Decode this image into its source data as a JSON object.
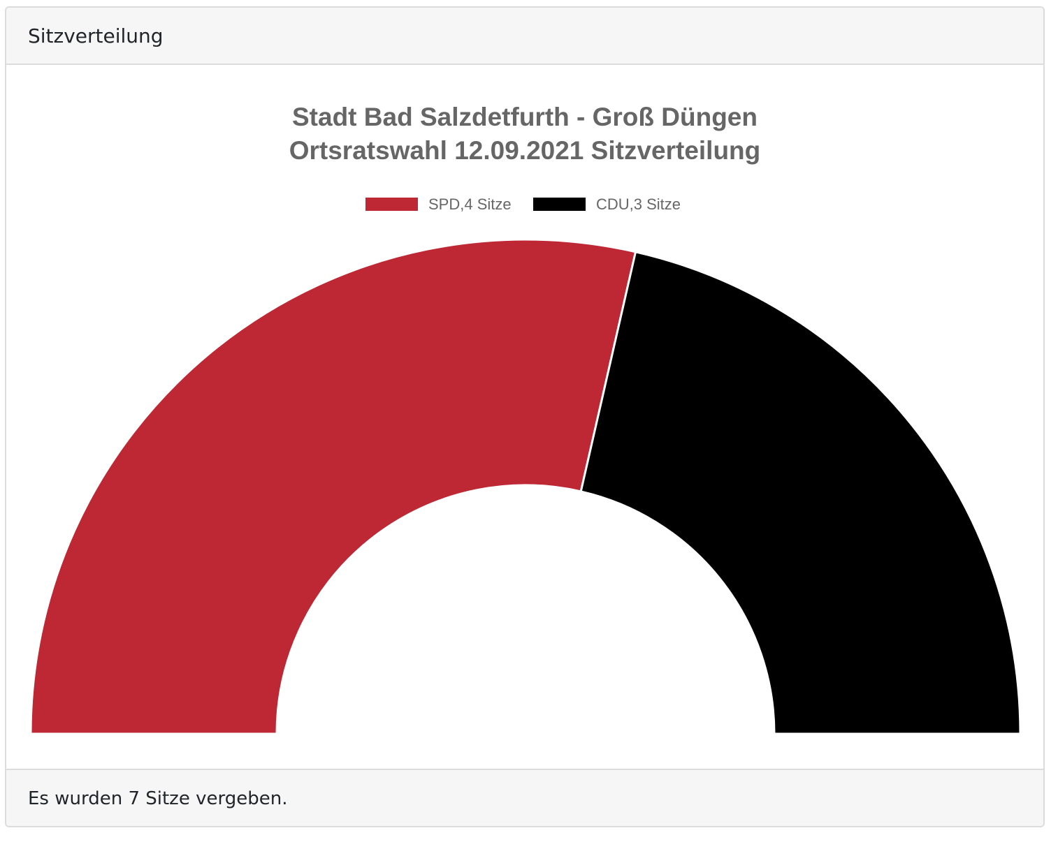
{
  "card": {
    "header_title": "Sitzverteilung",
    "footer_text": "Es wurden 7 Sitze vergeben."
  },
  "chart_data": {
    "type": "pie",
    "variant": "half-doughnut",
    "title_lines": [
      "Stadt Bad Salzdetfurth - Groß Düngen",
      "Ortsratswahl 12.09.2021 Sitzverteilung"
    ],
    "legend_position": "top",
    "series": [
      {
        "name": "SPD,4 Sitze",
        "value": 4,
        "color": "#be2734"
      },
      {
        "name": "CDU,3 Sitze",
        "value": 3,
        "color": "#000000"
      }
    ]
  }
}
